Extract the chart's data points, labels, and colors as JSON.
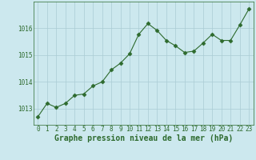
{
  "x": [
    0,
    1,
    2,
    3,
    4,
    5,
    6,
    7,
    8,
    9,
    10,
    11,
    12,
    13,
    14,
    15,
    16,
    17,
    18,
    19,
    20,
    21,
    22,
    23
  ],
  "y": [
    1012.7,
    1013.2,
    1013.05,
    1013.2,
    1013.5,
    1013.55,
    1013.85,
    1014.0,
    1014.45,
    1014.7,
    1015.05,
    1015.78,
    1016.18,
    1015.92,
    1015.55,
    1015.35,
    1015.1,
    1015.15,
    1015.45,
    1015.78,
    1015.55,
    1015.55,
    1016.12,
    1016.72
  ],
  "line_color": "#2d6a2d",
  "marker": "D",
  "marker_color": "#2d6a2d",
  "marker_size": 2.5,
  "bg_color": "#cce8ee",
  "plot_bg_color": "#cce8ee",
  "grid_color": "#aaccd4",
  "xlabel": "Graphe pression niveau de la mer (hPa)",
  "xlabel_color": "#2d6a2d",
  "xlabel_fontsize": 7,
  "tick_color": "#2d6a2d",
  "tick_fontsize": 5.5,
  "yticks": [
    1013,
    1014,
    1015,
    1016
  ],
  "ylim": [
    1012.4,
    1017.0
  ],
  "xlim": [
    -0.5,
    23.5
  ],
  "xtick_labels": [
    "0",
    "1",
    "2",
    "3",
    "4",
    "5",
    "6",
    "7",
    "8",
    "9",
    "10",
    "11",
    "12",
    "13",
    "14",
    "15",
    "16",
    "17",
    "18",
    "19",
    "20",
    "21",
    "22",
    "23"
  ]
}
